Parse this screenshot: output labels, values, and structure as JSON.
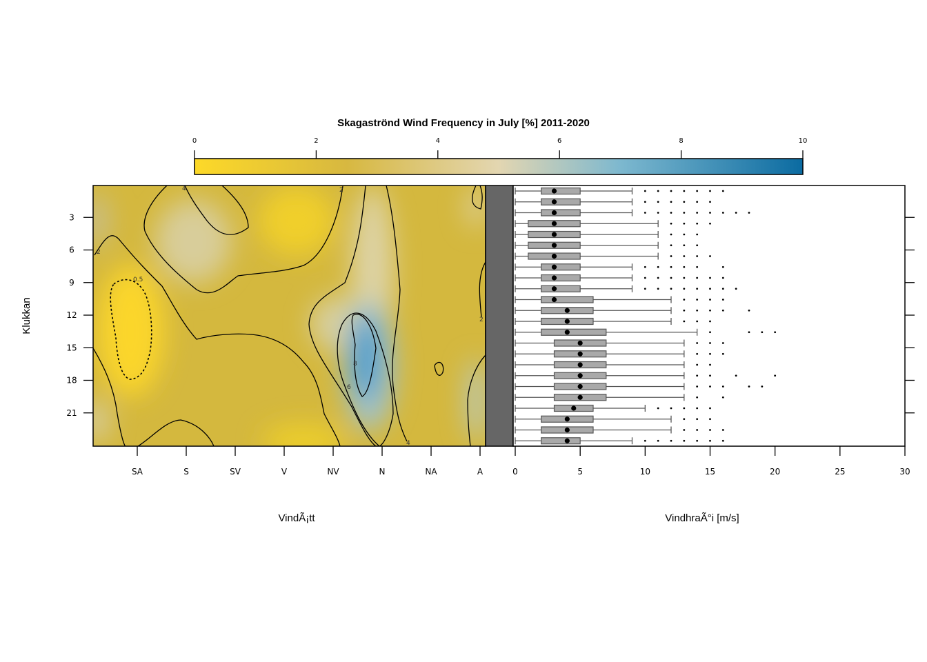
{
  "chart_data": [
    {
      "type": "heatmap",
      "title": "Skagaströnd Wind Frequency in July [%] 2011-2020",
      "xlabel": "VindÃ¡tt",
      "ylabel": "Klukkan",
      "x_categories": [
        "SA",
        "S",
        "SV",
        "V",
        "NV",
        "N",
        "NA",
        "A"
      ],
      "y_ticks": [
        3,
        6,
        9,
        12,
        15,
        18,
        21
      ],
      "ylim": [
        0,
        24
      ],
      "colorbar": {
        "range": [
          0,
          10
        ],
        "ticks": [
          0,
          2,
          4,
          6,
          8,
          10
        ],
        "colors": [
          "#fdd928",
          "#d7b840",
          "#e3d6b1",
          "#7db8cf",
          "#0b6ba1"
        ]
      },
      "contour_levels": [
        0.5,
        2,
        4,
        6,
        8
      ],
      "contour_labels": [
        "0.5",
        "2",
        "4",
        "6",
        "8"
      ],
      "approx_features": [
        {
          "direction": "SA",
          "hours": [
            9,
            18
          ],
          "frequency": 0.3
        },
        {
          "direction": "N",
          "hours": [
            12,
            22
          ],
          "frequency": 8.5
        },
        {
          "direction": "SV",
          "hours": [
            1,
            9
          ],
          "frequency": 4
        }
      ]
    },
    {
      "type": "box",
      "xlabel": "VindhraÃ°i [m/s]",
      "xlim": [
        0,
        30
      ],
      "x_ticks": [
        0,
        5,
        10,
        15,
        20,
        25,
        30
      ],
      "hours": [
        1,
        2,
        3,
        4,
        5,
        6,
        7,
        8,
        9,
        10,
        11,
        12,
        13,
        14,
        15,
        16,
        17,
        18,
        19,
        20,
        21,
        22,
        23,
        24
      ],
      "boxes": [
        {
          "lo": 0,
          "q1": 2,
          "med": 3,
          "q3": 5,
          "hi": 9,
          "out": [
            10,
            11,
            12,
            13,
            14,
            15,
            16
          ]
        },
        {
          "lo": 0,
          "q1": 2,
          "med": 3,
          "q3": 5,
          "hi": 9,
          "out": [
            10,
            11,
            12,
            13,
            14,
            15
          ]
        },
        {
          "lo": 0,
          "q1": 2,
          "med": 3,
          "q3": 5,
          "hi": 9,
          "out": [
            10,
            11,
            12,
            13,
            14,
            15,
            16,
            17,
            18
          ]
        },
        {
          "lo": 0,
          "q1": 1,
          "med": 3,
          "q3": 5,
          "hi": 11,
          "out": [
            12,
            13,
            14,
            15
          ]
        },
        {
          "lo": 0,
          "q1": 1,
          "med": 3,
          "q3": 5,
          "hi": 11,
          "out": [
            12,
            13,
            14
          ]
        },
        {
          "lo": 0,
          "q1": 1,
          "med": 3,
          "q3": 5,
          "hi": 11,
          "out": [
            12,
            13,
            14
          ]
        },
        {
          "lo": 0,
          "q1": 1,
          "med": 3,
          "q3": 5,
          "hi": 11,
          "out": [
            12,
            13,
            14,
            15
          ]
        },
        {
          "lo": 0,
          "q1": 2,
          "med": 3,
          "q3": 5,
          "hi": 9,
          "out": [
            10,
            11,
            12,
            13,
            14,
            16
          ]
        },
        {
          "lo": 0,
          "q1": 2,
          "med": 3,
          "q3": 5,
          "hi": 9,
          "out": [
            10,
            11,
            12,
            13,
            14,
            15,
            16
          ]
        },
        {
          "lo": 0,
          "q1": 2,
          "med": 3,
          "q3": 5,
          "hi": 9,
          "out": [
            10,
            11,
            12,
            13,
            14,
            15,
            16,
            17
          ]
        },
        {
          "lo": 0,
          "q1": 2,
          "med": 3,
          "q3": 6,
          "hi": 12,
          "out": [
            13,
            14,
            15,
            16
          ]
        },
        {
          "lo": 0,
          "q1": 2,
          "med": 4,
          "q3": 6,
          "hi": 12,
          "out": [
            13,
            14,
            15,
            16,
            18
          ]
        },
        {
          "lo": 0,
          "q1": 2,
          "med": 4,
          "q3": 6,
          "hi": 12,
          "out": [
            13,
            14,
            15
          ]
        },
        {
          "lo": 0,
          "q1": 2,
          "med": 4,
          "q3": 7,
          "hi": 14,
          "out": [
            15,
            18,
            19,
            20
          ]
        },
        {
          "lo": 0,
          "q1": 3,
          "med": 5,
          "q3": 7,
          "hi": 13,
          "out": [
            14,
            15,
            16
          ]
        },
        {
          "lo": 0,
          "q1": 3,
          "med": 5,
          "q3": 7,
          "hi": 13,
          "out": [
            14,
            15,
            16
          ]
        },
        {
          "lo": 0,
          "q1": 3,
          "med": 5,
          "q3": 7,
          "hi": 13,
          "out": [
            14,
            15
          ]
        },
        {
          "lo": 0,
          "q1": 3,
          "med": 5,
          "q3": 7,
          "hi": 13,
          "out": [
            14,
            15,
            17,
            20
          ]
        },
        {
          "lo": 0,
          "q1": 3,
          "med": 5,
          "q3": 7,
          "hi": 13,
          "out": [
            14,
            15,
            16,
            18,
            19
          ]
        },
        {
          "lo": 0,
          "q1": 3,
          "med": 5,
          "q3": 7,
          "hi": 13,
          "out": [
            14,
            16
          ]
        },
        {
          "lo": 0,
          "q1": 3,
          "med": 4.5,
          "q3": 6,
          "hi": 10,
          "out": [
            11,
            12,
            13,
            14,
            15
          ]
        },
        {
          "lo": 0,
          "q1": 2,
          "med": 4,
          "q3": 6,
          "hi": 12,
          "out": [
            13,
            14,
            15
          ]
        },
        {
          "lo": 0,
          "q1": 2,
          "med": 4,
          "q3": 6,
          "hi": 12,
          "out": [
            13,
            14,
            15,
            16
          ]
        },
        {
          "lo": 0,
          "q1": 2,
          "med": 4,
          "q3": 5,
          "hi": 9,
          "out": [
            10,
            11,
            12,
            13,
            14,
            15,
            16
          ]
        }
      ]
    }
  ]
}
